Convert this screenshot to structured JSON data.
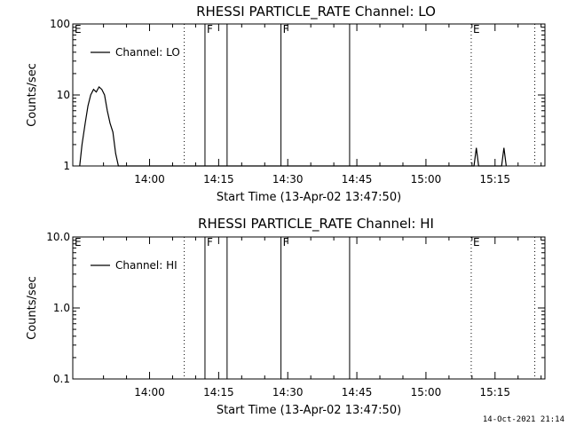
{
  "footer": {
    "timestamp": "14-Oct-2021 21:14"
  },
  "chart_data": [
    {
      "type": "line",
      "title": "RHESSI PARTICLE_RATE Channel: LO",
      "xlabel": "Start Time (13-Apr-02 13:47:50)",
      "ylabel": "Counts/sec",
      "yscale": "log",
      "ylim": [
        1,
        100
      ],
      "yticks": [
        1,
        10,
        100
      ],
      "ytick_labels": [
        "1",
        "10",
        "100"
      ],
      "xlim_min": [
        -4.5,
        98
      ],
      "xticks": [
        12.17,
        27.17,
        42.17,
        57.17,
        72.17,
        87.17
      ],
      "xtick_labels": [
        "14:00",
        "14:15",
        "14:30",
        "14:45",
        "15:00",
        "15:15"
      ],
      "legend": {
        "position": "top-left",
        "entries": [
          "Channel: LO"
        ]
      },
      "series": [
        {
          "name": "Channel: LO",
          "points": [
            [
              -3,
              1
            ],
            [
              -2.5,
              2
            ],
            [
              -1.8,
              4
            ],
            [
              -1.2,
              7
            ],
            [
              -0.6,
              10
            ],
            [
              0,
              12
            ],
            [
              0.6,
              11
            ],
            [
              1.2,
              13
            ],
            [
              1.8,
              12
            ],
            [
              2.4,
              10
            ],
            [
              3,
              6
            ],
            [
              3.6,
              4
            ],
            [
              4.2,
              3
            ],
            [
              4.8,
              1.5
            ],
            [
              5.4,
              1
            ],
            [
              82.6,
              1
            ],
            [
              83.1,
              1.8
            ],
            [
              83.6,
              1
            ],
            [
              88.6,
              1
            ],
            [
              89.1,
              1.8
            ],
            [
              89.6,
              1
            ]
          ]
        }
      ],
      "markers": [
        {
          "label": "E",
          "x": -4.5,
          "style": "dotted"
        },
        {
          "label": "",
          "x": 19.7,
          "style": "dotted"
        },
        {
          "label": "F",
          "x": 24.2,
          "style": "solid"
        },
        {
          "label": "",
          "x": 29.0,
          "style": "solid"
        },
        {
          "label": "F",
          "x": 40.7,
          "style": "solid"
        },
        {
          "label": "",
          "x": 55.6,
          "style": "solid"
        },
        {
          "label": "E",
          "x": 82.0,
          "style": "dotted"
        },
        {
          "label": "",
          "x": 95.8,
          "style": "dotted"
        }
      ]
    },
    {
      "type": "line",
      "title": "RHESSI PARTICLE_RATE Channel: HI",
      "xlabel": "Start Time (13-Apr-02 13:47:50)",
      "ylabel": "Counts/sec",
      "yscale": "log",
      "ylim": [
        0.1,
        10
      ],
      "yticks": [
        0.1,
        1,
        10
      ],
      "ytick_labels": [
        "0.1",
        "1.0",
        "10.0"
      ],
      "xlim_min": [
        -4.5,
        98
      ],
      "xticks": [
        12.17,
        27.17,
        42.17,
        57.17,
        72.17,
        87.17
      ],
      "xtick_labels": [
        "14:00",
        "14:15",
        "14:30",
        "14:45",
        "15:00",
        "15:15"
      ],
      "legend": {
        "position": "top-left",
        "entries": [
          "Channel: HI"
        ]
      },
      "series": [
        {
          "name": "Channel: HI",
          "points": []
        }
      ],
      "markers": [
        {
          "label": "E",
          "x": -4.5,
          "style": "dotted"
        },
        {
          "label": "",
          "x": 19.7,
          "style": "dotted"
        },
        {
          "label": "F",
          "x": 24.2,
          "style": "solid"
        },
        {
          "label": "",
          "x": 29.0,
          "style": "solid"
        },
        {
          "label": "F",
          "x": 40.7,
          "style": "solid"
        },
        {
          "label": "",
          "x": 55.6,
          "style": "solid"
        },
        {
          "label": "E",
          "x": 82.0,
          "style": "dotted"
        },
        {
          "label": "",
          "x": 95.8,
          "style": "dotted"
        }
      ]
    }
  ]
}
